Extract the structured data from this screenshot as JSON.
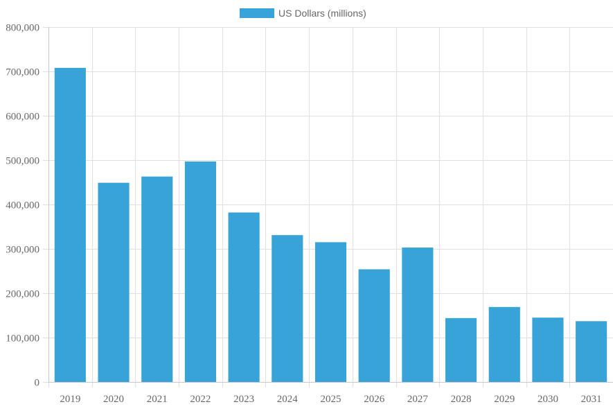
{
  "chart_data": {
    "type": "bar",
    "categories": [
      "2019",
      "2020",
      "2021",
      "2022",
      "2023",
      "2024",
      "2025",
      "2026",
      "2027",
      "2028",
      "2029",
      "2030",
      "2031"
    ],
    "series": [
      {
        "name": "US Dollars (millions)",
        "color": "#38a3d8",
        "values": [
          708000,
          449000,
          463000,
          497000,
          382000,
          331000,
          315000,
          254000,
          303000,
          144000,
          169000,
          145000,
          137000
        ]
      }
    ],
    "ylim": [
      0,
      800000
    ],
    "yticks": [
      "0",
      "100,000",
      "200,000",
      "300,000",
      "400,000",
      "500,000",
      "600,000",
      "700,000",
      "800,000"
    ],
    "grid": true,
    "legend": "top-center",
    "colors": {
      "grid": "#e0e0e0",
      "axis": "#c8c8c8",
      "text": "#666666"
    }
  }
}
